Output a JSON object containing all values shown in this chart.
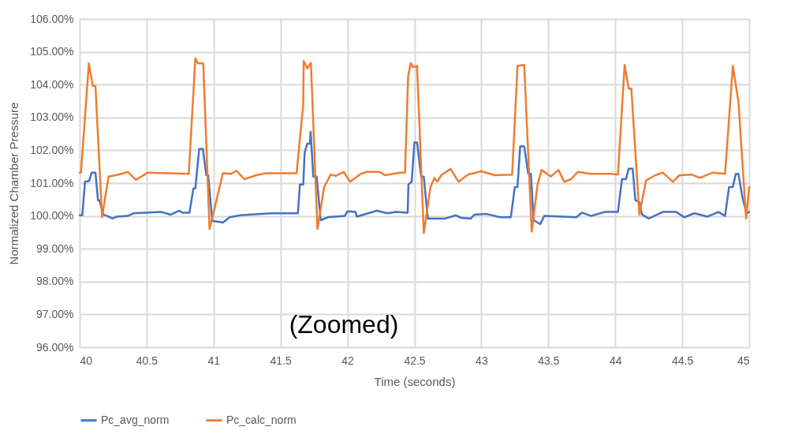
{
  "chart_data": {
    "type": "line",
    "xlabel": "Time (seconds)",
    "ylabel": "Normalized Chamber Pressure",
    "annotations": [
      "(Zoomed)"
    ],
    "xlim": [
      40,
      45
    ],
    "xticks": [
      40,
      40.5,
      41,
      41.5,
      42,
      42.5,
      43,
      43.5,
      44,
      44.5,
      45
    ],
    "ylim": [
      96,
      106
    ],
    "yticks": [
      {
        "value": 96,
        "label": "96.00%"
      },
      {
        "value": 97,
        "label": "97.00%"
      },
      {
        "value": 98,
        "label": "98.00%"
      },
      {
        "value": 99,
        "label": "99.00%"
      },
      {
        "value": 100,
        "label": "100.00%"
      },
      {
        "value": 101,
        "label": "101.00%"
      },
      {
        "value": 102,
        "label": "102.00%"
      },
      {
        "value": 103,
        "label": "103.00%"
      },
      {
        "value": 104,
        "label": "104.00%"
      },
      {
        "value": 105,
        "label": "105.00%"
      },
      {
        "value": 106,
        "label": "106.00%"
      }
    ],
    "grid": true,
    "legend": "bottom",
    "marker": "none",
    "line_style": "solid",
    "series": [
      {
        "name": "Pc_avg_norm",
        "color": "#4472c4",
        "x": [
          40,
          40.02,
          40.04,
          40.07,
          40.09,
          40.118,
          40.137,
          40.147,
          40.177,
          40.206,
          40.245,
          40.28,
          40.36,
          40.4,
          40.61,
          40.68,
          40.745,
          40.765,
          40.82,
          40.85,
          40.864,
          40.893,
          40.92,
          40.946,
          40.96,
          40.99,
          41.07,
          41.12,
          41.2,
          41.43,
          41.63,
          41.645,
          41.67,
          41.68,
          41.7,
          41.72,
          41.725,
          41.745,
          41.77,
          41.8,
          41.855,
          41.98,
          42,
          42.06,
          42.07,
          42.12,
          42.22,
          42.3,
          42.36,
          42.45,
          42.455,
          42.48,
          42.5,
          42.52,
          42.55,
          42.57,
          42.6,
          42.73,
          42.81,
          42.85,
          42.92,
          42.95,
          43.04,
          43.14,
          43.22,
          43.25,
          43.27,
          43.29,
          43.32,
          43.35,
          43.37,
          43.39,
          43.44,
          43.47,
          43.71,
          43.75,
          43.82,
          43.92,
          44.02,
          44.05,
          44.08,
          44.1,
          44.13,
          44.15,
          44.18,
          44.2,
          44.25,
          44.355,
          44.455,
          44.515,
          44.59,
          44.69,
          44.77,
          44.82,
          44.85,
          44.878,
          44.9,
          44.92,
          44.95,
          44.98,
          45
        ],
        "values": [
          100.02,
          100.02,
          101.04,
          101.06,
          101.32,
          101.32,
          100.48,
          100.48,
          100.04,
          100,
          99.92,
          99.98,
          100,
          100.08,
          100.12,
          100.04,
          100.16,
          100.1,
          100.1,
          100.84,
          100.84,
          102.04,
          102.04,
          101.24,
          101.24,
          99.85,
          99.8,
          99.96,
          100.02,
          100.08,
          100.08,
          100.96,
          100.96,
          101.92,
          102.2,
          102.2,
          102.56,
          101.2,
          101.2,
          99.87,
          99.96,
          100,
          100.14,
          100.12,
          99.98,
          100.04,
          100.16,
          100.08,
          100.12,
          100.1,
          100.96,
          101.04,
          102.24,
          102.24,
          101.2,
          101.2,
          99.92,
          99.92,
          100.02,
          99.94,
          99.92,
          100.04,
          100.06,
          99.96,
          99.96,
          100.88,
          100.88,
          102.12,
          102.12,
          101.28,
          101.28,
          99.87,
          99.75,
          100,
          99.96,
          100.1,
          100,
          100.12,
          100.12,
          101.12,
          101.12,
          101.44,
          101.44,
          100.48,
          100.42,
          100.04,
          99.92,
          100.12,
          100.12,
          99.96,
          100.08,
          99.98,
          100.12,
          100,
          100.88,
          100.88,
          101.28,
          101.28,
          100.56,
          100.08,
          100.12
        ]
      },
      {
        "name": "Pc_calc_norm",
        "color": "#ed7d31",
        "x": [
          40,
          40.01,
          40.069,
          40.098,
          40.118,
          40.167,
          40.216,
          40.29,
          40.36,
          40.42,
          40.51,
          40.815,
          40.864,
          40.883,
          40.923,
          40.97,
          41.07,
          41.13,
          41.17,
          41.23,
          41.32,
          41.39,
          41.62,
          41.67,
          41.673,
          41.7,
          41.727,
          41.776,
          41.826,
          41.875,
          41.913,
          41.973,
          42.02,
          42.1,
          42.14,
          42.24,
          42.28,
          42.395,
          42.43,
          42.453,
          42.473,
          42.49,
          42.52,
          42.57,
          42.62,
          42.65,
          42.67,
          42.7,
          42.77,
          42.83,
          42.9,
          43,
          43.1,
          43.23,
          43.27,
          43.32,
          43.376,
          43.42,
          43.45,
          43.52,
          43.575,
          43.62,
          43.67,
          43.72,
          43.81,
          43.97,
          44.02,
          44.07,
          44.1,
          44.12,
          44.18,
          44.23,
          44.3,
          44.355,
          44.43,
          44.48,
          44.57,
          44.63,
          44.73,
          44.82,
          44.878,
          44.92,
          44.977,
          45
        ],
        "values": [
          101.32,
          101.32,
          104.65,
          103.96,
          103.96,
          99.96,
          101.2,
          101.26,
          101.34,
          101.1,
          101.32,
          101.28,
          104.8,
          104.65,
          104.65,
          99.6,
          101.3,
          101.28,
          101.38,
          101.12,
          101.24,
          101.3,
          101.3,
          103.4,
          104.72,
          104.49,
          104.66,
          99.6,
          100.88,
          101.26,
          101.22,
          101.34,
          101.04,
          101.28,
          101.34,
          101.34,
          101.24,
          101.32,
          101.32,
          104.25,
          104.66,
          104.53,
          104.57,
          99.48,
          100.88,
          101.16,
          101.04,
          101.24,
          101.43,
          101.04,
          101.26,
          101.36,
          101.24,
          101.26,
          104.57,
          104.6,
          99.52,
          100.96,
          101.4,
          101.2,
          101.4,
          101.04,
          101.12,
          101.34,
          101.28,
          101.28,
          101.26,
          104.6,
          103.88,
          103.88,
          100.04,
          101.08,
          101.24,
          101.32,
          101.04,
          101.24,
          101.26,
          101.16,
          101.32,
          101.28,
          104.57,
          103.48,
          99.92,
          100.88
        ]
      }
    ]
  }
}
